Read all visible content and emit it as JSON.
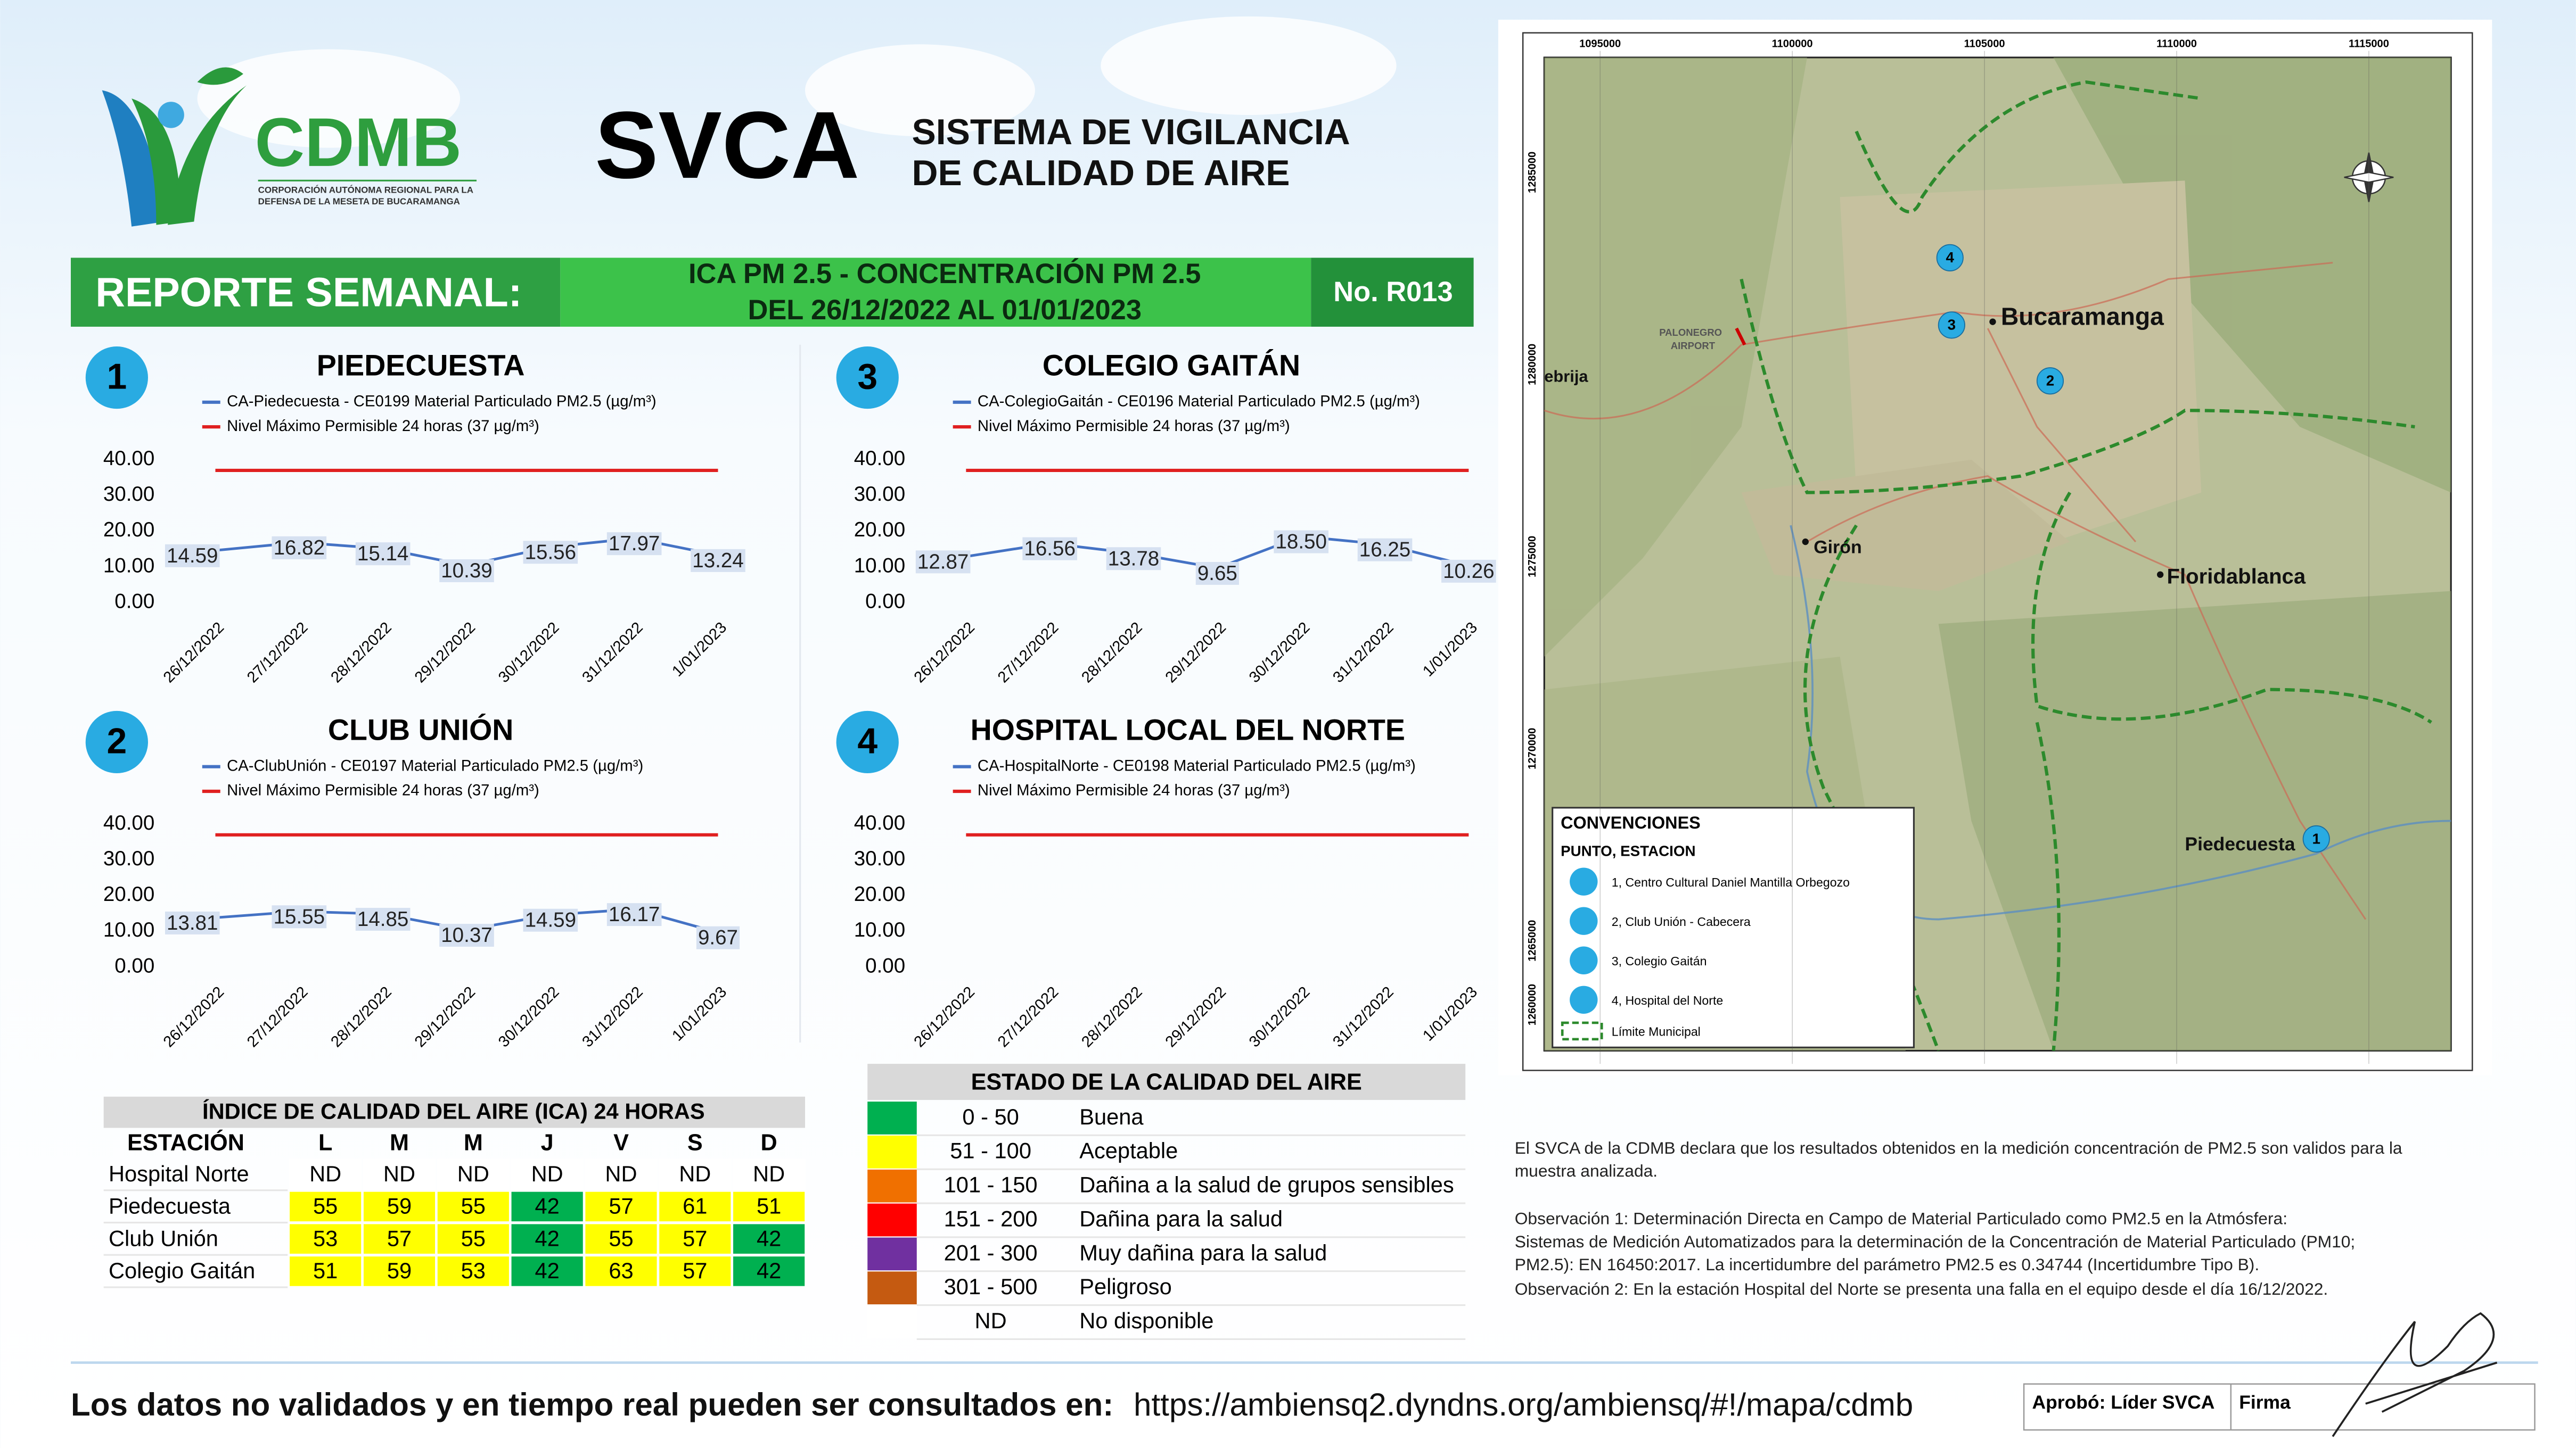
{
  "header": {
    "logo_text": "CDMB",
    "logo_subtitle_1": "CORPORACIÓN AUTÓNOMA REGIONAL PARA LA",
    "logo_subtitle_2": "DEFENSA DE LA MESETA DE BUCARAMANGA",
    "acronym": "SVCA",
    "title_line1": "SISTEMA DE VIGILANCIA",
    "title_line2": "DE CALIDAD DE AIRE"
  },
  "banner": {
    "label": "REPORTE SEMANAL:",
    "line1": "ICA PM 2.5 - CONCENTRACIÓN PM 2.5",
    "line2": "DEL 26/12/2022 AL 01/01/2023",
    "report_no": "No. R013"
  },
  "chart_data": [
    {
      "type": "line",
      "number": "1",
      "title": "PIEDECUESTA",
      "categories": [
        "26/12/2022",
        "27/12/2022",
        "28/12/2022",
        "29/12/2022",
        "30/12/2022",
        "31/12/2022",
        "1/01/2023"
      ],
      "series": [
        {
          "name": "CA-Piedecuesta - CE0199 Material Particulado PM2.5 (µg/m³)",
          "color": "#4472c4",
          "data_labels": true,
          "values": [
            14.59,
            16.82,
            15.14,
            10.39,
            15.56,
            17.97,
            13.24
          ]
        },
        {
          "name": "Nivel Máximo Permisible 24 horas (37 µg/m³)",
          "color": "#e02020",
          "values": [
            37,
            37,
            37,
            37,
            37,
            37,
            37
          ]
        }
      ],
      "ylim": [
        0,
        40
      ],
      "yticks": [
        {
          "value": 0,
          "label": "0.00"
        },
        {
          "value": 10,
          "label": "10.00"
        },
        {
          "value": 20,
          "label": "20.00"
        },
        {
          "value": 30,
          "label": "30.00"
        },
        {
          "value": 40,
          "label": "40.00"
        }
      ],
      "grid": false
    },
    {
      "type": "line",
      "number": "3",
      "title": "COLEGIO GAITÁN",
      "categories": [
        "26/12/2022",
        "27/12/2022",
        "28/12/2022",
        "29/12/2022",
        "30/12/2022",
        "31/12/2022",
        "1/01/2023"
      ],
      "series": [
        {
          "name": "CA-ColegioGaitán  - CE0196 Material Particulado PM2.5 (µg/m³)",
          "color": "#4472c4",
          "data_labels": true,
          "values": [
            12.87,
            16.56,
            13.78,
            9.65,
            18.5,
            16.25,
            10.26
          ],
          "value_labels": [
            "12.87",
            "16.56",
            "13.78",
            "9.65",
            "18.50",
            "16.25",
            "10.26"
          ]
        },
        {
          "name": "Nivel Máximo Permisible 24 horas (37 µg/m³)",
          "color": "#e02020",
          "values": [
            37,
            37,
            37,
            37,
            37,
            37,
            37
          ]
        }
      ],
      "ylim": [
        0,
        40
      ],
      "yticks": [
        {
          "value": 0,
          "label": "0.00"
        },
        {
          "value": 10,
          "label": "10.00"
        },
        {
          "value": 20,
          "label": "20.00"
        },
        {
          "value": 30,
          "label": "30.00"
        },
        {
          "value": 40,
          "label": "40.00"
        }
      ],
      "grid": false
    },
    {
      "type": "line",
      "number": "2",
      "title": "CLUB UNIÓN",
      "categories": [
        "26/12/2022",
        "27/12/2022",
        "28/12/2022",
        "29/12/2022",
        "30/12/2022",
        "31/12/2022",
        "1/01/2023"
      ],
      "series": [
        {
          "name": "CA-ClubUnión - CE0197 Material Particulado PM2.5 (µg/m³)",
          "color": "#4472c4",
          "data_labels": true,
          "values": [
            13.81,
            15.55,
            14.85,
            10.37,
            14.59,
            16.17,
            9.67
          ]
        },
        {
          "name": "Nivel Máximo Permisible 24 horas (37 µg/m³)",
          "color": "#e02020",
          "values": [
            37,
            37,
            37,
            37,
            37,
            37,
            37
          ]
        }
      ],
      "ylim": [
        0,
        40
      ],
      "yticks": [
        {
          "value": 0,
          "label": "0.00"
        },
        {
          "value": 10,
          "label": "10.00"
        },
        {
          "value": 20,
          "label": "20.00"
        },
        {
          "value": 30,
          "label": "30.00"
        },
        {
          "value": 40,
          "label": "40.00"
        }
      ],
      "grid": false
    },
    {
      "type": "line",
      "number": "4",
      "title": "HOSPITAL LOCAL DEL NORTE",
      "categories": [
        "26/12/2022",
        "27/12/2022",
        "28/12/2022",
        "29/12/2022",
        "30/12/2022",
        "31/12/2022",
        "1/01/2023"
      ],
      "series": [
        {
          "name": "CA-HospitalNorte - CE0198 Material Particulado PM2.5 (µg/m³)",
          "color": "#4472c4",
          "data_labels": true,
          "values": [
            null,
            null,
            null,
            null,
            null,
            null,
            null
          ]
        },
        {
          "name": "Nivel Máximo Permisible 24 horas (37 µg/m³)",
          "color": "#e02020",
          "values": [
            37,
            37,
            37,
            37,
            37,
            37,
            37
          ]
        }
      ],
      "ylim": [
        0,
        40
      ],
      "yticks": [
        {
          "value": 0,
          "label": "0.00"
        },
        {
          "value": 10,
          "label": "10.00"
        },
        {
          "value": 20,
          "label": "20.00"
        },
        {
          "value": 30,
          "label": "30.00"
        },
        {
          "value": 40,
          "label": "40.00"
        }
      ],
      "grid": false
    }
  ],
  "ica_table": {
    "title": "ÍNDICE DE CALIDAD DEL AIRE (ICA) 24 HORAS",
    "columns": [
      "ESTACIÓN",
      "L",
      "M",
      "M",
      "J",
      "V",
      "S",
      "D"
    ],
    "rows": [
      [
        "Hospital Norte",
        "ND",
        "ND",
        "ND",
        "ND",
        "ND",
        "ND",
        "ND"
      ],
      [
        "Piedecuesta",
        55,
        59,
        55,
        42,
        57,
        61,
        51
      ],
      [
        "Club Unión",
        53,
        57,
        55,
        42,
        55,
        57,
        42
      ],
      [
        "Colegio Gaitán",
        51,
        59,
        53,
        42,
        63,
        57,
        42
      ]
    ]
  },
  "quality_table": {
    "title": "ESTADO DE LA CALIDAD DEL AIRE",
    "rows": [
      {
        "range": "0 - 50",
        "label": "Buena",
        "color": "#00b050"
      },
      {
        "range": "51 - 100",
        "label": "Aceptable",
        "color": "#ffff00"
      },
      {
        "range": "101 - 150",
        "label": "Dañina a la salud de grupos sensibles",
        "color": "#f07000"
      },
      {
        "range": "151 - 200",
        "label": "Dañina para la salud",
        "color": "#ff0000"
      },
      {
        "range": "201 - 300",
        "label": "Muy dañina para la salud",
        "color": "#7030a0"
      },
      {
        "range": "301 - 500",
        "label": "Peligroso",
        "color": "#c55a11"
      },
      {
        "range": "ND",
        "label": "No disponible"
      }
    ]
  },
  "map": {
    "x_ticks": [
      "1095000",
      "1100000",
      "1105000",
      "1110000",
      "1115000"
    ],
    "y_ticks": [
      "1285000",
      "1280000",
      "1275000",
      "1270000",
      "1265000",
      "1260000"
    ],
    "places": [
      "Bucaramanga",
      "Girón",
      "Floridablanca",
      "Piedecuesta",
      "PALONEGRO",
      "AIRPORT",
      "ebrija"
    ],
    "stations": [
      "4",
      "3",
      "2",
      "1"
    ],
    "legend": {
      "title": "CONVENCIONES",
      "subtitle": "PUNTO, ESTACION",
      "items": [
        "1, Centro Cultural Daniel Mantilla Orbegozo",
        "2, Club Unión - Cabecera",
        "3, Colegio Gaitán",
        "4, Hospital del Norte"
      ],
      "boundary": "Límite Municipal"
    }
  },
  "notes": [
    "El SVCA  de la CDMB declara que los resultados obtenidos en la medición concentración de PM2.5 son validos para la",
    "muestra  analizada.",
    "Observación 1: Determinación Directa en Campo de Material Particulado como PM2.5 en la Atmósfera:",
    "Sistemas de Medición Automatizados para la  determinación de la Concentración de Material Particulado (PM10;",
    "PM2.5): EN 16450:2017. La incertidumbre del parámetro PM2.5 es 0.34744 (Incertidumbre Tipo B).",
    "Observación 2: En la estación Hospital del Norte se presenta una falla en el equipo  desde el día 16/12/2022."
  ],
  "footer": {
    "text": "Los datos no validados y en tiempo real pueden ser consultados en:",
    "url": "https://ambiensq2.dyndns.org/ambiensq/#!/mapa/cdmb",
    "approved": "Aprobó: Líder SVCA",
    "signature": "Firma"
  }
}
